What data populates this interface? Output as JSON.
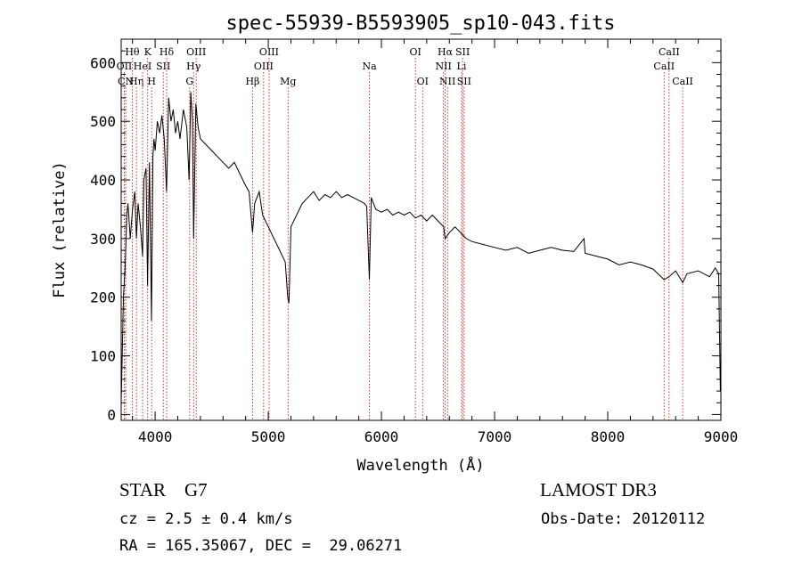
{
  "chart_data": {
    "type": "line",
    "title": "spec-55939-B5593905_sp10-043.fits",
    "xlabel": "Wavelength (Å)",
    "ylabel": "Flux (relative)",
    "xlim": [
      3700,
      9000
    ],
    "ylim": [
      -10,
      640
    ],
    "x_ticks": [
      4000,
      5000,
      6000,
      7000,
      8000,
      9000
    ],
    "y_ticks": [
      0,
      100,
      200,
      300,
      400,
      500,
      600
    ],
    "grid": false,
    "legend": "none",
    "line_color": "#000000",
    "marker_color": "#cc0000",
    "series": [
      {
        "x": [
          3700,
          3710,
          3720,
          3735,
          3750,
          3760,
          3780,
          3800,
          3820,
          3835,
          3850,
          3870,
          3889,
          3900,
          3920,
          3933,
          3950,
          3968,
          3980,
          3990,
          4000,
          4020,
          4040,
          4060,
          4080,
          4101,
          4120,
          4140,
          4160,
          4180,
          4200,
          4220,
          4250,
          4280,
          4300,
          4315,
          4330,
          4340,
          4360,
          4380,
          4400,
          4450,
          4500,
          4550,
          4600,
          4650,
          4700,
          4750,
          4800,
          4830,
          4861,
          4880,
          4920,
          4950,
          5000,
          5050,
          5100,
          5150,
          5172,
          5183,
          5200,
          5250,
          5300,
          5350,
          5400,
          5450,
          5500,
          5550,
          5600,
          5650,
          5700,
          5750,
          5800,
          5850,
          5870,
          5893,
          5910,
          5950,
          6000,
          6050,
          6100,
          6150,
          6200,
          6250,
          6300,
          6350,
          6400,
          6450,
          6500,
          6550,
          6563,
          6600,
          6650,
          6700,
          6750,
          6800,
          6900,
          7000,
          7100,
          7200,
          7300,
          7400,
          7500,
          7600,
          7700,
          7790,
          7800,
          7900,
          8000,
          8100,
          8200,
          8300,
          8400,
          8498,
          8542,
          8600,
          8662,
          8700,
          8800,
          8900,
          8950,
          8980,
          8995
        ],
        "y": [
          20,
          110,
          200,
          250,
          340,
          360,
          300,
          350,
          380,
          300,
          360,
          320,
          270,
          400,
          420,
          220,
          430,
          160,
          440,
          470,
          450,
          500,
          480,
          510,
          470,
          380,
          540,
          500,
          520,
          480,
          500,
          470,
          520,
          490,
          400,
          550,
          500,
          300,
          530,
          490,
          470,
          460,
          450,
          440,
          430,
          420,
          430,
          410,
          390,
          380,
          310,
          360,
          380,
          340,
          320,
          300,
          280,
          260,
          200,
          190,
          320,
          340,
          360,
          370,
          380,
          365,
          375,
          370,
          380,
          370,
          375,
          370,
          365,
          360,
          355,
          230,
          370,
          350,
          345,
          350,
          340,
          345,
          340,
          345,
          335,
          340,
          330,
          340,
          330,
          320,
          300,
          310,
          320,
          310,
          300,
          295,
          290,
          285,
          280,
          285,
          275,
          280,
          285,
          280,
          278,
          300,
          275,
          270,
          265,
          255,
          260,
          255,
          248,
          230,
          235,
          245,
          225,
          240,
          245,
          235,
          250,
          240,
          40
        ]
      }
    ],
    "line_markers": [
      {
        "label": "Hθ",
        "x": 3798,
        "row": 1
      },
      {
        "label": "OII",
        "x": 3727,
        "row": 2
      },
      {
        "label": "Hη",
        "x": 3835,
        "row": 3
      },
      {
        "label": "CN",
        "x": 3740,
        "row": 3
      },
      {
        "label": "K",
        "x": 3934,
        "row": 1
      },
      {
        "label": "HeI",
        "x": 3889,
        "row": 2
      },
      {
        "label": "H",
        "x": 3969,
        "row": 3
      },
      {
        "label": "SII",
        "x": 4072,
        "row": 2
      },
      {
        "label": "Hδ",
        "x": 4102,
        "row": 1
      },
      {
        "label": "OIII",
        "x": 4363,
        "row": 1
      },
      {
        "label": "Hγ",
        "x": 4340,
        "row": 2
      },
      {
        "label": "G",
        "x": 4305,
        "row": 3
      },
      {
        "label": "Hβ",
        "x": 4861,
        "row": 3
      },
      {
        "label": "OIII",
        "x": 5007,
        "row": 1
      },
      {
        "label": "OIII",
        "x": 4959,
        "row": 2
      },
      {
        "label": "Mg",
        "x": 5175,
        "row": 3
      },
      {
        "label": "Na",
        "x": 5894,
        "row": 2
      },
      {
        "label": "OI",
        "x": 6300,
        "row": 1
      },
      {
        "label": "OI",
        "x": 6364,
        "row": 3
      },
      {
        "label": "Hα",
        "x": 6563,
        "row": 1
      },
      {
        "label": "NII",
        "x": 6548,
        "row": 2
      },
      {
        "label": "NII",
        "x": 6584,
        "row": 3
      },
      {
        "label": "SII",
        "x": 6717,
        "row": 1
      },
      {
        "label": "Li",
        "x": 6708,
        "row": 2
      },
      {
        "label": "SII",
        "x": 6731,
        "row": 3
      },
      {
        "label": "CaII",
        "x": 8542,
        "row": 1
      },
      {
        "label": "CaII",
        "x": 8498,
        "row": 2
      },
      {
        "label": "CaII",
        "x": 8662,
        "row": 3
      }
    ]
  },
  "info": {
    "object_class": "STAR    G7",
    "survey": "LAMOST DR3",
    "cz": "cz = 2.5 ± 0.4 km/s",
    "obs_date": "Obs-Date: 20120112",
    "radec": "RA = 165.35067, DEC =  29.06271"
  }
}
